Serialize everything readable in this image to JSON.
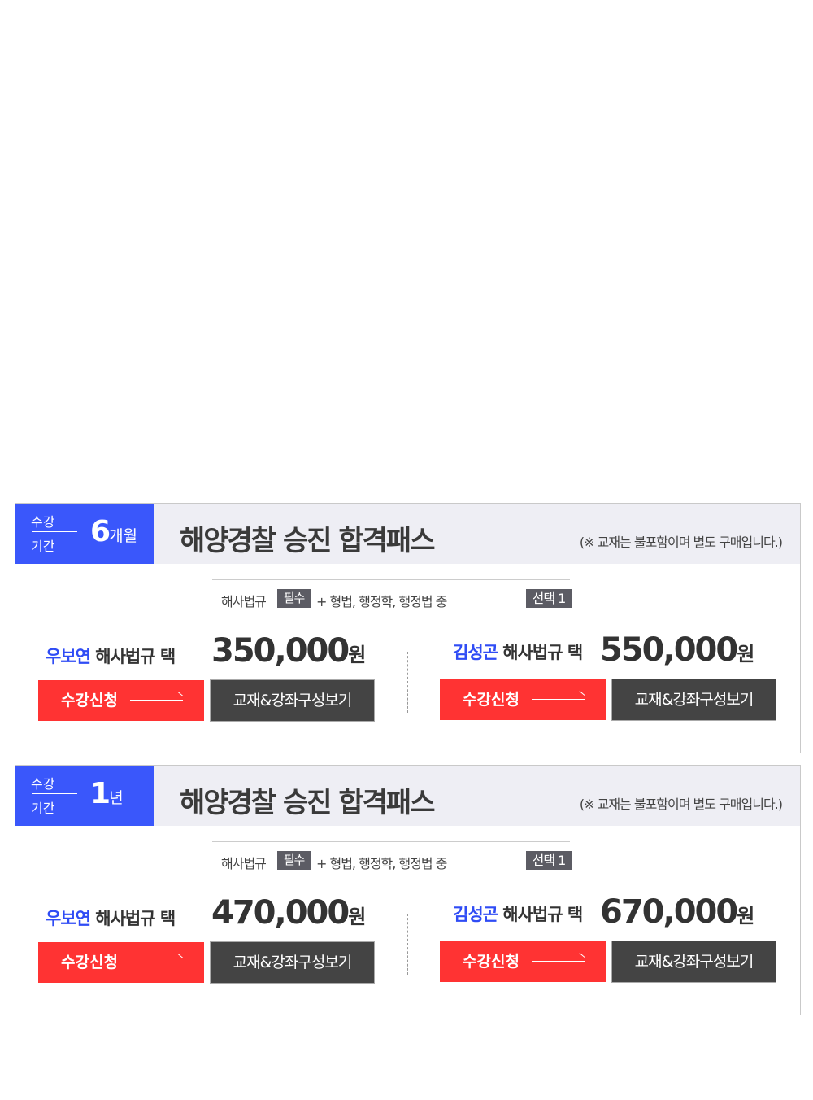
{
  "passes": [
    {
      "period_label_1": "수강",
      "period_label_2": "기간",
      "period_num": "6",
      "period_unit": "개월",
      "title": "해양경찰 승진 합격패스",
      "note": "(※ 교재는 불포함이며 별도 구매입니다.)",
      "course_required": "해사법규",
      "required_badge": "필수",
      "course_optional": "+ 형법, 행정학, 행정법 중",
      "optional_badge": "선택 1",
      "options": [
        {
          "teacher": "우보연",
          "subject": " 해사법규 택",
          "price": "350,000",
          "unit": "원",
          "apply": "수강신청",
          "view": "교재&강좌구성보기"
        },
        {
          "teacher": "김성곤",
          "subject": " 해사법규 택",
          "price": "550,000",
          "unit": "원",
          "apply": "수강신청",
          "view": "교재&강좌구성보기"
        }
      ]
    },
    {
      "period_label_1": "수강",
      "period_label_2": "기간",
      "period_num": "1",
      "period_unit": "년",
      "title": "해양경찰 승진 합격패스",
      "note": "(※ 교재는 불포함이며 별도 구매입니다.)",
      "course_required": "해사법규",
      "required_badge": "필수",
      "course_optional": "+ 형법, 행정학, 행정법 중",
      "optional_badge": "선택 1",
      "options": [
        {
          "teacher": "우보연",
          "subject": " 해사법규 택",
          "price": "470,000",
          "unit": "원",
          "apply": "수강신청",
          "view": "교재&강좌구성보기"
        },
        {
          "teacher": "김성곤",
          "subject": " 해사법규 택",
          "price": "670,000",
          "unit": "원",
          "apply": "수강신청",
          "view": "교재&강좌구성보기"
        }
      ]
    }
  ],
  "colors": {
    "accent_blue": "#3a57fb",
    "apply_red": "#ff3333",
    "dark_button": "#444444"
  }
}
